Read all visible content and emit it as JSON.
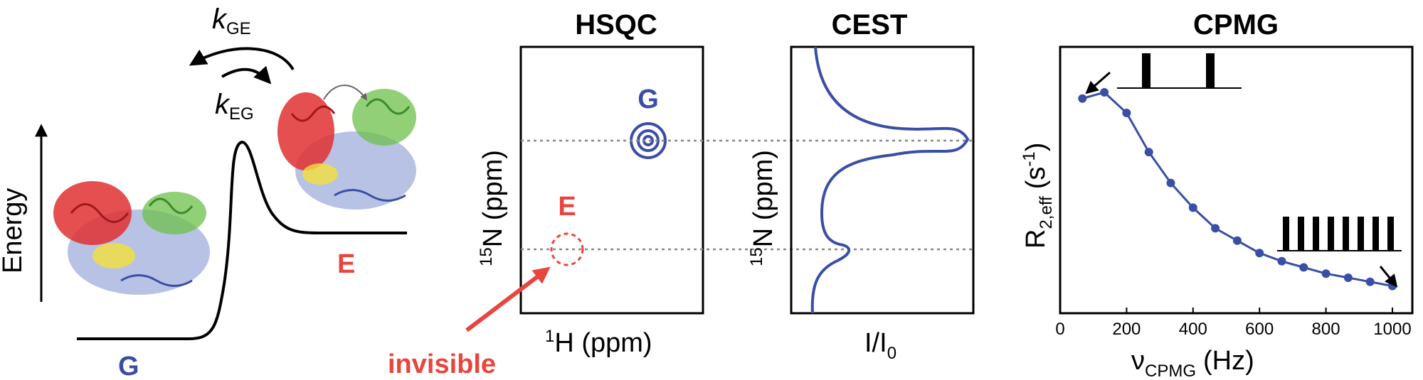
{
  "energy_panel": {
    "ylabel": "Energy",
    "state_ground": "G",
    "state_excited": "E",
    "rate_forward_symbol": "k",
    "rate_forward_sub": "GE",
    "rate_reverse_symbol": "k",
    "rate_reverse_sub": "EG"
  },
  "hsqc_panel": {
    "title": "HSQC",
    "xlabel_sup": "1",
    "xlabel": "H (ppm)",
    "ylabel_sup": "15",
    "ylabel": "N (ppm)",
    "peak_ground_label": "G",
    "peak_excited_label": "E",
    "invisible_label": "invisible"
  },
  "cest_panel": {
    "title": "CEST",
    "ylabel_sup": "15",
    "ylabel": "N (ppm)",
    "xlabel_main": "I/I",
    "xlabel_sub": "0"
  },
  "colors": {
    "blue": "#3a4ea5",
    "red": "#e8453c",
    "gray": "#888888"
  },
  "chart_data": {
    "type": "line",
    "title": "CPMG",
    "xlabel_main": "ν",
    "xlabel_sub": "CPMG",
    "xlabel_unit": "(Hz)",
    "ylabel_main": "R",
    "ylabel_sub": "2,eff",
    "ylabel_unit": "(s",
    "ylabel_unit_sup": "-1",
    "ylabel_unit_close": ")",
    "xlim": [
      0,
      1060
    ],
    "ylim": [
      0,
      1
    ],
    "x_ticks": [
      0,
      200,
      400,
      600,
      800,
      1000
    ],
    "x_tick_labels": [
      "0",
      "200",
      "400",
      "600",
      "800",
      "1000"
    ],
    "grid": false,
    "series": [
      {
        "x": [
          67,
          133,
          200,
          267,
          333,
          400,
          467,
          533,
          600,
          667,
          733,
          800,
          867,
          933,
          1000
        ],
        "y": [
          0.97,
          1.0,
          0.9,
          0.71,
          0.56,
          0.44,
          0.34,
          0.28,
          0.22,
          0.18,
          0.15,
          0.12,
          0.1,
          0.08,
          0.06
        ]
      }
    ]
  }
}
